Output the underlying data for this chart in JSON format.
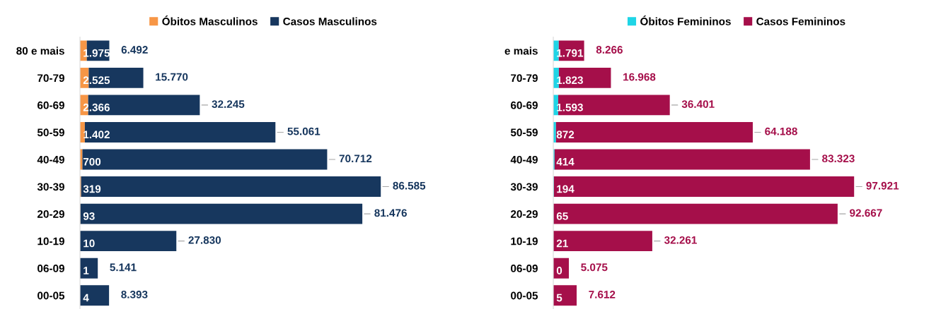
{
  "chart_data": [
    {
      "type": "bar",
      "orientation": "horizontal",
      "stacked": true,
      "legend": "top",
      "grid": false,
      "tick_labels": "y",
      "data_labels": true,
      "categories": [
        "80 e mais",
        "70-79",
        "60-69",
        "50-59",
        "40-49",
        "30-39",
        "20-29",
        "10-19",
        "06-09",
        "00-05"
      ],
      "series": [
        {
          "name": "Óbitos Masculinos",
          "color": "#f79646",
          "values": [
            1975,
            2525,
            2366,
            1402,
            700,
            319,
            93,
            10,
            1,
            4
          ],
          "value_labels": [
            "1.975",
            "2.525",
            "2.366",
            "1.402",
            "700",
            "319",
            "93",
            "10",
            "1",
            "4"
          ]
        },
        {
          "name": "Casos Masculinos",
          "color": "#17375e",
          "values": [
            6492,
            15770,
            32245,
            55061,
            70712,
            86585,
            81476,
            27830,
            5141,
            8393
          ],
          "value_labels": [
            "6.492",
            "15.770",
            "32.245",
            "55.061",
            "70.712",
            "86.585",
            "81.476",
            "27.830",
            "5.141",
            "8.393"
          ]
        }
      ]
    },
    {
      "type": "bar",
      "orientation": "horizontal",
      "stacked": true,
      "legend": "top",
      "grid": false,
      "tick_labels": "y",
      "data_labels": true,
      "categories": [
        "e mais",
        "70-79",
        "60-69",
        "50-59",
        "40-49",
        "30-39",
        "20-29",
        "10-19",
        "06-09",
        "00-05"
      ],
      "series": [
        {
          "name": "Óbitos Femininos",
          "color": "#1fd5e6",
          "values": [
            1791,
            1823,
            1593,
            872,
            414,
            194,
            65,
            21,
            0,
            5
          ],
          "value_labels": [
            "1.791",
            "1.823",
            "1.593",
            "872",
            "414",
            "194",
            "65",
            "21",
            "0",
            "5"
          ]
        },
        {
          "name": "Casos Femininos",
          "color": "#a50f4a",
          "values": [
            8266,
            16968,
            36401,
            64188,
            83323,
            97921,
            92667,
            32261,
            5075,
            7612
          ],
          "value_labels": [
            "8.266",
            "16.968",
            "36.401",
            "64.188",
            "83.323",
            "97.921",
            "92.667",
            "32.261",
            "5.075",
            "7.612"
          ]
        }
      ]
    }
  ]
}
